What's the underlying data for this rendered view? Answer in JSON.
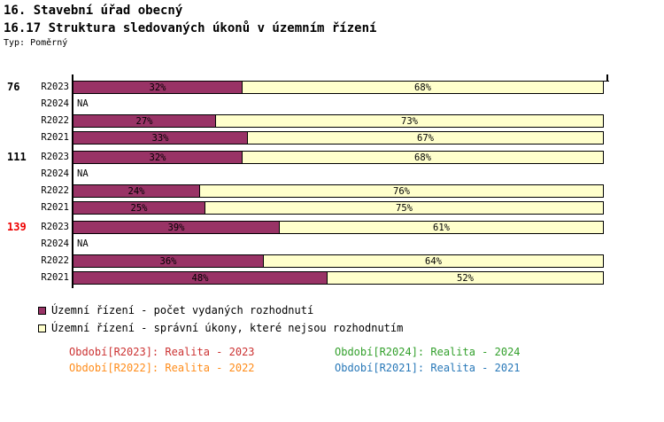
{
  "header": {
    "title1": "16. Stavební úřad obecný",
    "title2": "16.17 Struktura sledovaných úkonů v územním řízení",
    "subtitle": "Typ: Poměrný"
  },
  "chart_data": {
    "type": "bar",
    "orientation": "horizontal",
    "stacked": true,
    "value_unit": "%",
    "xlim": [
      0,
      100
    ],
    "na_label": "NA",
    "legend_position": "bottom-left",
    "series": [
      {
        "name": "Územní řízení - počet vydaných rozhodnutí",
        "color": "#993366"
      },
      {
        "name": "Územní řízení - správní úkony, které nejsou rozhodnutím",
        "color": "#FFFFCC"
      }
    ],
    "groups": [
      {
        "label": "76",
        "label_color": "#000000",
        "rows": [
          {
            "period": "R2023",
            "values": [
              32,
              68
            ]
          },
          {
            "period": "R2024",
            "na": true
          },
          {
            "period": "R2022",
            "values": [
              27,
              73
            ]
          },
          {
            "period": "R2021",
            "values": [
              33,
              67
            ]
          }
        ]
      },
      {
        "label": "111",
        "label_color": "#000000",
        "rows": [
          {
            "period": "R2023",
            "values": [
              32,
              68
            ]
          },
          {
            "period": "R2024",
            "na": true
          },
          {
            "period": "R2022",
            "values": [
              24,
              76
            ]
          },
          {
            "period": "R2021",
            "values": [
              25,
              75
            ]
          }
        ]
      },
      {
        "label": "139",
        "label_color": "#EE0000",
        "rows": [
          {
            "period": "R2023",
            "values": [
              39,
              61
            ]
          },
          {
            "period": "R2024",
            "na": true
          },
          {
            "period": "R2022",
            "values": [
              36,
              64
            ]
          },
          {
            "period": "R2021",
            "values": [
              48,
              52
            ]
          }
        ]
      }
    ]
  },
  "period_legend": {
    "items": [
      {
        "label": "Období[R2023]: Realita - 2023",
        "color": "#CC3333"
      },
      {
        "label": "Období[R2024]: Realita - 2024",
        "color": "#33A02C"
      },
      {
        "label": "Období[R2022]: Realita - 2022",
        "color": "#FF8C1A"
      },
      {
        "label": "Období[R2021]: Realita - 2021",
        "color": "#2878B8"
      }
    ]
  }
}
